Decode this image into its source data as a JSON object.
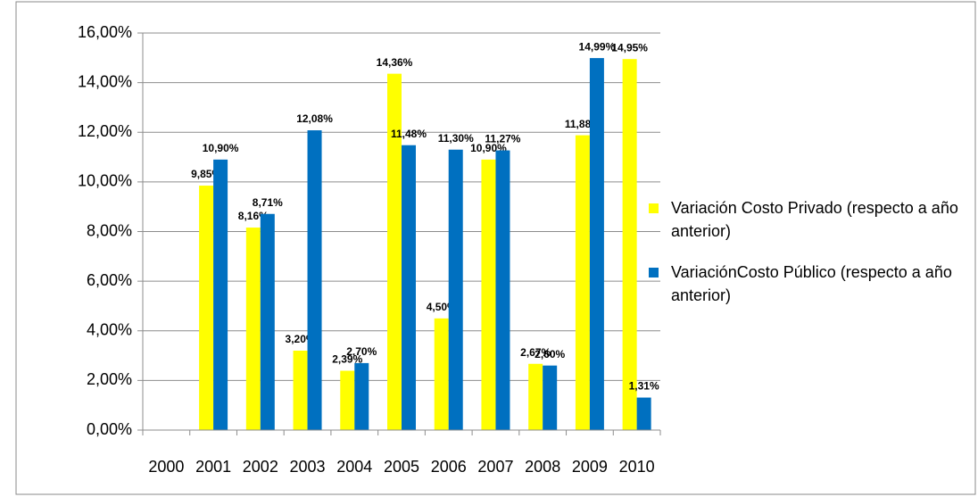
{
  "chart_data": {
    "type": "bar",
    "categories": [
      "2000",
      "2001",
      "2002",
      "2003",
      "2004",
      "2005",
      "2006",
      "2007",
      "2008",
      "2009",
      "2010"
    ],
    "series": [
      {
        "name": "Variación Costo Privado (respecto a año anterior)",
        "color": "#ffff00",
        "values": [
          null,
          9.85,
          8.16,
          3.2,
          2.39,
          14.36,
          4.5,
          10.9,
          2.67,
          11.88,
          14.95
        ],
        "value_labels": [
          null,
          "9,85%",
          "8,16%",
          "3,20%",
          "2,39%",
          "14,36%",
          "4,50%",
          "10,90%",
          "2,67%",
          "11,88%",
          "14,95%"
        ]
      },
      {
        "name": "VariaciónCosto Público (respecto a año anterior)",
        "color": "#0070c0",
        "values": [
          null,
          10.9,
          8.71,
          12.08,
          2.7,
          11.48,
          11.3,
          11.27,
          2.6,
          14.99,
          1.31
        ],
        "value_labels": [
          null,
          "10,90%",
          "8,71%",
          "12,08%",
          "2,70%",
          "11,48%",
          "11,30%",
          "11,27%",
          "2,60%",
          "14,99%",
          "1,31%"
        ]
      }
    ],
    "ylim": [
      0,
      16
    ],
    "yticks": [
      {
        "value": 0,
        "label": "0,00%"
      },
      {
        "value": 2,
        "label": "2,00%"
      },
      {
        "value": 4,
        "label": "4,00%"
      },
      {
        "value": 6,
        "label": "6,00%"
      },
      {
        "value": 8,
        "label": "8,00%"
      },
      {
        "value": 10,
        "label": "10,00%"
      },
      {
        "value": 12,
        "label": "12,00%"
      },
      {
        "value": 14,
        "label": "14,00%"
      },
      {
        "value": 16,
        "label": "16,00%"
      }
    ],
    "grid": true,
    "legend": "right"
  }
}
